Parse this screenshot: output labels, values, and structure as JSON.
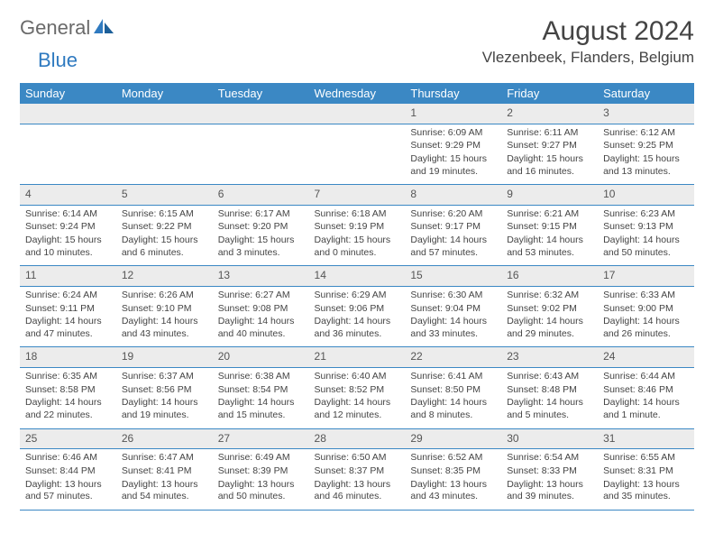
{
  "logo": {
    "text1": "General",
    "text2": "Blue"
  },
  "title": "August 2024",
  "location": "Vlezenbeek, Flanders, Belgium",
  "colors": {
    "header_bg": "#3b88c4",
    "daynum_bg": "#ececec",
    "rule": "#3b88c4"
  },
  "dayHeaders": [
    "Sunday",
    "Monday",
    "Tuesday",
    "Wednesday",
    "Thursday",
    "Friday",
    "Saturday"
  ],
  "weeks": [
    [
      null,
      null,
      null,
      null,
      {
        "n": "1",
        "sr": "6:09 AM",
        "ss": "9:29 PM",
        "dl": "15 hours and 19 minutes."
      },
      {
        "n": "2",
        "sr": "6:11 AM",
        "ss": "9:27 PM",
        "dl": "15 hours and 16 minutes."
      },
      {
        "n": "3",
        "sr": "6:12 AM",
        "ss": "9:25 PM",
        "dl": "15 hours and 13 minutes."
      }
    ],
    [
      {
        "n": "4",
        "sr": "6:14 AM",
        "ss": "9:24 PM",
        "dl": "15 hours and 10 minutes."
      },
      {
        "n": "5",
        "sr": "6:15 AM",
        "ss": "9:22 PM",
        "dl": "15 hours and 6 minutes."
      },
      {
        "n": "6",
        "sr": "6:17 AM",
        "ss": "9:20 PM",
        "dl": "15 hours and 3 minutes."
      },
      {
        "n": "7",
        "sr": "6:18 AM",
        "ss": "9:19 PM",
        "dl": "15 hours and 0 minutes."
      },
      {
        "n": "8",
        "sr": "6:20 AM",
        "ss": "9:17 PM",
        "dl": "14 hours and 57 minutes."
      },
      {
        "n": "9",
        "sr": "6:21 AM",
        "ss": "9:15 PM",
        "dl": "14 hours and 53 minutes."
      },
      {
        "n": "10",
        "sr": "6:23 AM",
        "ss": "9:13 PM",
        "dl": "14 hours and 50 minutes."
      }
    ],
    [
      {
        "n": "11",
        "sr": "6:24 AM",
        "ss": "9:11 PM",
        "dl": "14 hours and 47 minutes."
      },
      {
        "n": "12",
        "sr": "6:26 AM",
        "ss": "9:10 PM",
        "dl": "14 hours and 43 minutes."
      },
      {
        "n": "13",
        "sr": "6:27 AM",
        "ss": "9:08 PM",
        "dl": "14 hours and 40 minutes."
      },
      {
        "n": "14",
        "sr": "6:29 AM",
        "ss": "9:06 PM",
        "dl": "14 hours and 36 minutes."
      },
      {
        "n": "15",
        "sr": "6:30 AM",
        "ss": "9:04 PM",
        "dl": "14 hours and 33 minutes."
      },
      {
        "n": "16",
        "sr": "6:32 AM",
        "ss": "9:02 PM",
        "dl": "14 hours and 29 minutes."
      },
      {
        "n": "17",
        "sr": "6:33 AM",
        "ss": "9:00 PM",
        "dl": "14 hours and 26 minutes."
      }
    ],
    [
      {
        "n": "18",
        "sr": "6:35 AM",
        "ss": "8:58 PM",
        "dl": "14 hours and 22 minutes."
      },
      {
        "n": "19",
        "sr": "6:37 AM",
        "ss": "8:56 PM",
        "dl": "14 hours and 19 minutes."
      },
      {
        "n": "20",
        "sr": "6:38 AM",
        "ss": "8:54 PM",
        "dl": "14 hours and 15 minutes."
      },
      {
        "n": "21",
        "sr": "6:40 AM",
        "ss": "8:52 PM",
        "dl": "14 hours and 12 minutes."
      },
      {
        "n": "22",
        "sr": "6:41 AM",
        "ss": "8:50 PM",
        "dl": "14 hours and 8 minutes."
      },
      {
        "n": "23",
        "sr": "6:43 AM",
        "ss": "8:48 PM",
        "dl": "14 hours and 5 minutes."
      },
      {
        "n": "24",
        "sr": "6:44 AM",
        "ss": "8:46 PM",
        "dl": "14 hours and 1 minute."
      }
    ],
    [
      {
        "n": "25",
        "sr": "6:46 AM",
        "ss": "8:44 PM",
        "dl": "13 hours and 57 minutes."
      },
      {
        "n": "26",
        "sr": "6:47 AM",
        "ss": "8:41 PM",
        "dl": "13 hours and 54 minutes."
      },
      {
        "n": "27",
        "sr": "6:49 AM",
        "ss": "8:39 PM",
        "dl": "13 hours and 50 minutes."
      },
      {
        "n": "28",
        "sr": "6:50 AM",
        "ss": "8:37 PM",
        "dl": "13 hours and 46 minutes."
      },
      {
        "n": "29",
        "sr": "6:52 AM",
        "ss": "8:35 PM",
        "dl": "13 hours and 43 minutes."
      },
      {
        "n": "30",
        "sr": "6:54 AM",
        "ss": "8:33 PM",
        "dl": "13 hours and 39 minutes."
      },
      {
        "n": "31",
        "sr": "6:55 AM",
        "ss": "8:31 PM",
        "dl": "13 hours and 35 minutes."
      }
    ]
  ],
  "labels": {
    "sunrise": "Sunrise: ",
    "sunset": "Sunset: ",
    "daylight": "Daylight: "
  }
}
